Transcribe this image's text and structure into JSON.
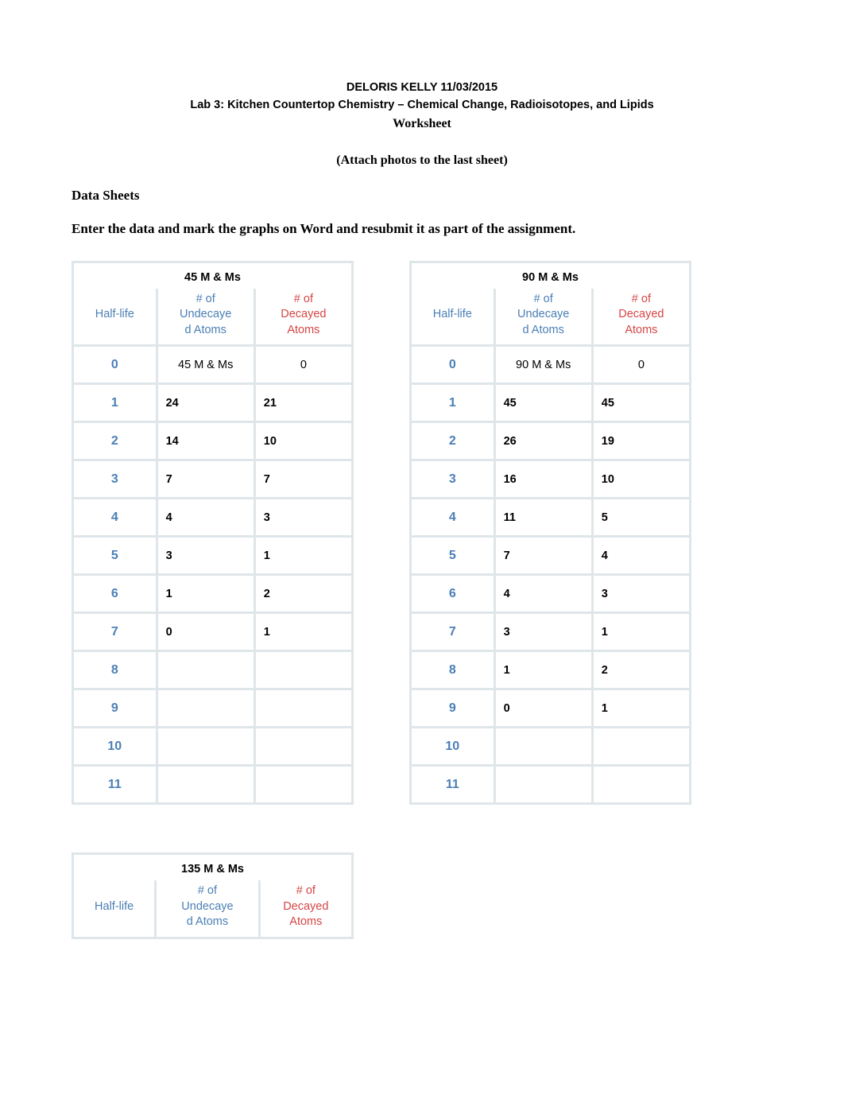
{
  "header": {
    "line1": "DELORIS KELLY 11/03/2015",
    "line2": "Lab 3: Kitchen Countertop Chemistry – Chemical Change, Radioisotopes, and Lipids",
    "line3": "Worksheet",
    "line4": "(Attach photos to the last sheet)"
  },
  "section_heading": "Data Sheets",
  "instruction": "Enter the data and mark the graphs on Word and resubmit it as part of the assignment.",
  "tables": {
    "col_headers": {
      "halflife": "Half-life",
      "undecayed": "# of Undecayed Atoms",
      "decayed": "# of Decayed Atoms"
    },
    "t1": {
      "title": "45 M & Ms",
      "rows": [
        {
          "hl": "0",
          "u": "45 M & Ms",
          "d": "0",
          "first": true
        },
        {
          "hl": "1",
          "u": "24",
          "d": "21"
        },
        {
          "hl": "2",
          "u": "14",
          "d": "10"
        },
        {
          "hl": "3",
          "u": "7",
          "d": "7"
        },
        {
          "hl": "4",
          "u": "4",
          "d": "3"
        },
        {
          "hl": "5",
          "u": "3",
          "d": "1"
        },
        {
          "hl": "6",
          "u": "1",
          "d": "2"
        },
        {
          "hl": "7",
          "u": "0",
          "d": "1"
        },
        {
          "hl": "8",
          "u": "",
          "d": ""
        },
        {
          "hl": "9",
          "u": "",
          "d": ""
        },
        {
          "hl": "10",
          "u": "",
          "d": ""
        },
        {
          "hl": "11",
          "u": "",
          "d": ""
        }
      ]
    },
    "t2": {
      "title": "90 M & Ms",
      "rows": [
        {
          "hl": "0",
          "u": "90 M & Ms",
          "d": "0",
          "first": true
        },
        {
          "hl": "1",
          "u": "45",
          "d": "45"
        },
        {
          "hl": "2",
          "u": "26",
          "d": "19"
        },
        {
          "hl": "3",
          "u": "16",
          "d": "10"
        },
        {
          "hl": "4",
          "u": "11",
          "d": "5"
        },
        {
          "hl": "5",
          "u": "7",
          "d": "4"
        },
        {
          "hl": "6",
          "u": "4",
          "d": "3"
        },
        {
          "hl": "7",
          "u": "3",
          "d": "1"
        },
        {
          "hl": "8",
          "u": "1",
          "d": "2"
        },
        {
          "hl": "9",
          "u": "0",
          "d": "1"
        },
        {
          "hl": "10",
          "u": "",
          "d": ""
        },
        {
          "hl": "11",
          "u": "",
          "d": ""
        }
      ]
    },
    "t3": {
      "title": "135  M & Ms",
      "rows": []
    }
  },
  "colors": {
    "blue": "#4a7fb5",
    "red": "#d64545",
    "border": "#dfe6e9",
    "black": "#000000",
    "background": "#ffffff"
  }
}
